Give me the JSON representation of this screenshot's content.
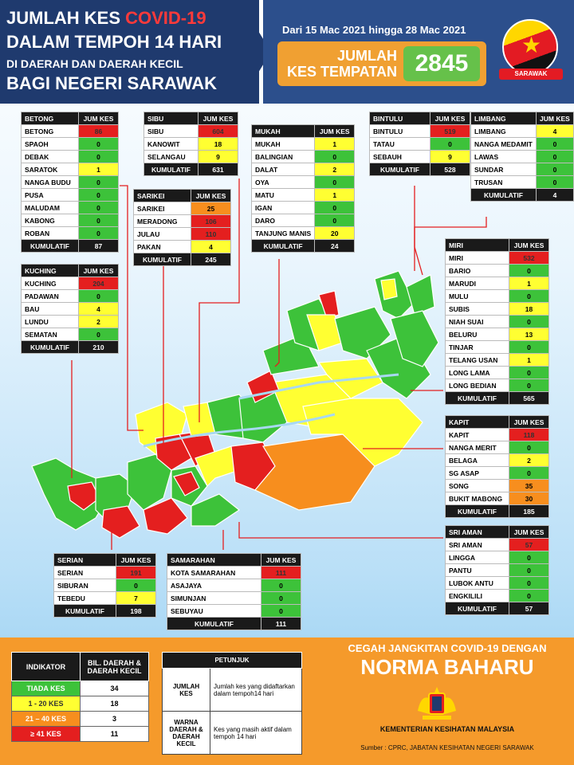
{
  "header": {
    "title_line1_a": "JUMLAH KES ",
    "title_line1_b": "COVID-19",
    "title_line2": "DALAM TEMPOH 14 HARI",
    "title_line3": "DI DAERAH DAN DAERAH KECIL",
    "title_line4": "BAGI NEGERI SARAWAK",
    "date_range": "Dari 15 Mac 2021 hingga 28 Mac 2021",
    "total_label_1": "JUMLAH",
    "total_label_2": "KES TEMPATAN",
    "total_value": "2845",
    "flag_band": "SARAWAK"
  },
  "chart_data": {
    "type": "table",
    "title": "JUMLAH KES COVID-19 DALAM TEMPOH 14 HARI DI DAERAH DAN DAERAH KECIL BAGI NEGERI SARAWAK",
    "colors": {
      "red": "#e41f1f",
      "orange": "#f78e1e",
      "yellow": "#ffff32",
      "green": "#3dc23a"
    },
    "divisions": [
      {
        "name": "BETONG",
        "header": "JUM KES",
        "kumulatif_label": "KUMULATIF",
        "kumulatif": "87",
        "rows": [
          [
            "BETONG",
            "86",
            "r"
          ],
          [
            "SPAOH",
            "0",
            "g"
          ],
          [
            "DEBAK",
            "0",
            "g"
          ],
          [
            "SARATOK",
            "1",
            "y"
          ],
          [
            "NANGA BUDU",
            "0",
            "g"
          ],
          [
            "PUSA",
            "0",
            "g"
          ],
          [
            "MALUDAM",
            "0",
            "g"
          ],
          [
            "KABONG",
            "0",
            "g"
          ],
          [
            "ROBAN",
            "0",
            "g"
          ]
        ]
      },
      {
        "name": "KUCHING",
        "header": "JUM KES",
        "kumulatif_label": "KUMULATIF",
        "kumulatif": "210",
        "rows": [
          [
            "KUCHING",
            "204",
            "r"
          ],
          [
            "PADAWAN",
            "0",
            "g"
          ],
          [
            "BAU",
            "4",
            "y"
          ],
          [
            "LUNDU",
            "2",
            "y"
          ],
          [
            "SEMATAN",
            "0",
            "g"
          ]
        ]
      },
      {
        "name": "SIBU",
        "header": "JUM KES",
        "kumulatif_label": "KUMULATIF",
        "kumulatif": "631",
        "rows": [
          [
            "SIBU",
            "604",
            "r"
          ],
          [
            "KANOWIT",
            "18",
            "y"
          ],
          [
            "SELANGAU",
            "9",
            "y"
          ]
        ]
      },
      {
        "name": "SARIKEI",
        "header": "JUM KES",
        "kumulatif_label": "KUMULATIF",
        "kumulatif": "245",
        "rows": [
          [
            "SARIKEI",
            "25",
            "o"
          ],
          [
            "MERADONG",
            "106",
            "r"
          ],
          [
            "JULAU",
            "110",
            "r"
          ],
          [
            "PAKAN",
            "4",
            "y"
          ]
        ]
      },
      {
        "name": "MUKAH",
        "header": "JUM KES",
        "kumulatif_label": "KUMULATIF",
        "kumulatif": "24",
        "rows": [
          [
            "MUKAH",
            "1",
            "y"
          ],
          [
            "BALINGIAN",
            "0",
            "g"
          ],
          [
            "DALAT",
            "2",
            "y"
          ],
          [
            "OYA",
            "0",
            "g"
          ],
          [
            "MATU",
            "1",
            "y"
          ],
          [
            "IGAN",
            "0",
            "g"
          ],
          [
            "DARO",
            "0",
            "g"
          ],
          [
            "TANJUNG MANIS",
            "20",
            "y"
          ]
        ]
      },
      {
        "name": "BINTULU",
        "header": "JUM KES",
        "kumulatif_label": "KUMULATIF",
        "kumulatif": "528",
        "rows": [
          [
            "BINTULU",
            "519",
            "r"
          ],
          [
            "TATAU",
            "0",
            "g"
          ],
          [
            "SEBAUH",
            "9",
            "y"
          ]
        ]
      },
      {
        "name": "LIMBANG",
        "header": "JUM KES",
        "kumulatif_label": "KUMULATIF",
        "kumulatif": "4",
        "rows": [
          [
            "LIMBANG",
            "4",
            "y"
          ],
          [
            "NANGA MEDAMIT",
            "0",
            "g"
          ],
          [
            "LAWAS",
            "0",
            "g"
          ],
          [
            "SUNDAR",
            "0",
            "g"
          ],
          [
            "TRUSAN",
            "0",
            "g"
          ]
        ]
      },
      {
        "name": "MIRI",
        "header": "JUM KES",
        "kumulatif_label": "KUMULATIF",
        "kumulatif": "565",
        "rows": [
          [
            "MIRI",
            "532",
            "r"
          ],
          [
            "BARIO",
            "0",
            "g"
          ],
          [
            "MARUDI",
            "1",
            "y"
          ],
          [
            "MULU",
            "0",
            "g"
          ],
          [
            "SUBIS",
            "18",
            "y"
          ],
          [
            "NIAH SUAI",
            "0",
            "g"
          ],
          [
            "BELURU",
            "13",
            "y"
          ],
          [
            "TINJAR",
            "0",
            "g"
          ],
          [
            "TELANG USAN",
            "1",
            "y"
          ],
          [
            "LONG LAMA",
            "0",
            "g"
          ],
          [
            "LONG BEDIAN",
            "0",
            "g"
          ]
        ]
      },
      {
        "name": "KAPIT",
        "header": "JUM KES",
        "kumulatif_label": "KUMULATIF",
        "kumulatif": "185",
        "rows": [
          [
            "KAPIT",
            "118",
            "r"
          ],
          [
            "NANGA MERIT",
            "0",
            "g"
          ],
          [
            "BELAGA",
            "2",
            "y"
          ],
          [
            "SG ASAP",
            "0",
            "g"
          ],
          [
            "SONG",
            "35",
            "o"
          ],
          [
            "BUKIT MABONG",
            "30",
            "o"
          ]
        ]
      },
      {
        "name": "SRI AMAN",
        "header": "JUM KES",
        "kumulatif_label": "KUMULATIF",
        "kumulatif": "57",
        "rows": [
          [
            "SRI AMAN",
            "57",
            "r"
          ],
          [
            "LINGGA",
            "0",
            "g"
          ],
          [
            "PANTU",
            "0",
            "g"
          ],
          [
            "LUBOK ANTU",
            "0",
            "g"
          ],
          [
            "ENGKILILI",
            "0",
            "g"
          ]
        ]
      },
      {
        "name": "SERIAN",
        "header": "JUM KES",
        "kumulatif_label": "KUMULATIF",
        "kumulatif": "198",
        "rows": [
          [
            "SERIAN",
            "191",
            "r"
          ],
          [
            "SIBURAN",
            "0",
            "g"
          ],
          [
            "TEBEDU",
            "7",
            "y"
          ]
        ]
      },
      {
        "name": "SAMARAHAN",
        "header": "JUM KES",
        "kumulatif_label": "KUMULATIF",
        "kumulatif": "111",
        "rows": [
          [
            "KOTA SAMARAHAN",
            "111",
            "r"
          ],
          [
            "ASAJAYA",
            "0",
            "g"
          ],
          [
            "SIMUNJAN",
            "0",
            "g"
          ],
          [
            "SEBUYAU",
            "0",
            "g"
          ]
        ]
      }
    ],
    "indicator": {
      "col1": "INDIKATOR",
      "col2": "BIL. DAERAH & DAERAH KECIL",
      "rows": [
        [
          "TIADA KES",
          "34",
          "g"
        ],
        [
          "1 - 20 KES",
          "18",
          "y"
        ],
        [
          "21 – 40 KES",
          "3",
          "o"
        ],
        [
          "≥ 41 KES",
          "11",
          "r"
        ]
      ]
    }
  },
  "petunjuk": {
    "title": "PETUNJUK",
    "row1_key": "JUMLAH KES",
    "row1_desc": "Jumlah kes yang didaftarkan dalam tempoh14 hari",
    "row2_key": "WARNA DAERAH & DAERAH KECIL",
    "row2_desc": "Kes yang masih aktif dalam tempoh 14 hari"
  },
  "footer": {
    "cegah": "CEGAH JANGKITAN COVID-19 DENGAN",
    "norma": "NORMA BAHARU",
    "kkm": "KEMENTERIAN KESIHATAN MALAYSIA",
    "sumber": "Sumber : CPRC, JABATAN KESIHATAN NEGERI SARAWAK"
  }
}
